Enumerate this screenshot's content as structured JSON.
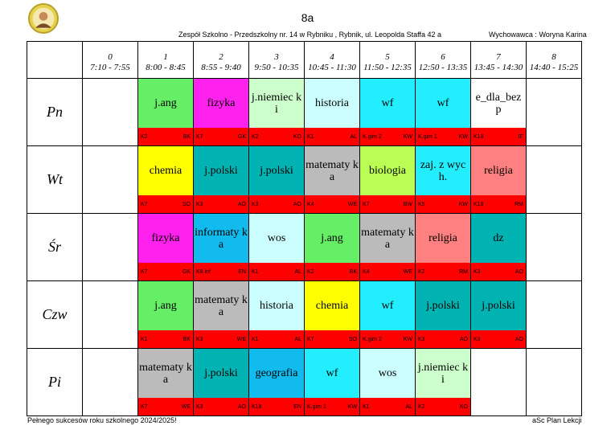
{
  "title": "8a",
  "school": "Zespół Szkolno - Przedszkolny nr. 14 w Rybniku  , Rybnik, ul. Leopolda Staffa 42 a",
  "teacher": "Wychowawca : Woryna Karina",
  "footer_left": "Pełnego sukcesów roku szkolnego 2024/2025!",
  "footer_right": "aSc Plan Lekcji",
  "periods": [
    {
      "num": "0",
      "time": "7:10 - 7:55"
    },
    {
      "num": "1",
      "time": "8:00 - 8:45"
    },
    {
      "num": "2",
      "time": "8:55 - 9:40"
    },
    {
      "num": "3",
      "time": "9:50 - 10:35"
    },
    {
      "num": "4",
      "time": "10:45 - 11:30"
    },
    {
      "num": "5",
      "time": "11:50 - 12:35"
    },
    {
      "num": "6",
      "time": "12:50 - 13:35"
    },
    {
      "num": "7",
      "time": "13:45 - 14:30"
    },
    {
      "num": "8",
      "time": "14:40 - 15:25"
    }
  ],
  "days": [
    {
      "name": "Pn",
      "lessons": [
        null,
        {
          "subject": "j.ang",
          "room": "K2",
          "teacher": "BK",
          "color": "#66ee66"
        },
        {
          "subject": "fizyka",
          "room": "K7",
          "teacher": "GK",
          "color": "#ff22ee"
        },
        {
          "subject": "j.niemiec ki",
          "room": "K2",
          "teacher": "KO",
          "color": "#ccffcc"
        },
        {
          "subject": "historia",
          "room": "K1",
          "teacher": "AL",
          "color": "#ccffff"
        },
        {
          "subject": "wf",
          "room": "K.gim 2",
          "teacher": "KW",
          "color": "#22eeff"
        },
        {
          "subject": "wf",
          "room": "K.gim 1",
          "teacher": "KW",
          "color": "#22eeff"
        },
        {
          "subject": "e_dla_bez p",
          "room": "K18",
          "teacher": "IE",
          "color": "#ffffff"
        },
        null
      ]
    },
    {
      "name": "Wt",
      "lessons": [
        null,
        {
          "subject": "chemia",
          "room": "K7",
          "teacher": "SO",
          "color": "#ffff00"
        },
        {
          "subject": "j.polski",
          "room": "K3",
          "teacher": "AO",
          "color": "#00b3b3"
        },
        {
          "subject": "j.polski",
          "room": "K3",
          "teacher": "AO",
          "color": "#00b3b3"
        },
        {
          "subject": "matematy ka",
          "room": "K4",
          "teacher": "WE",
          "color": "#bbbbbb"
        },
        {
          "subject": "biologia",
          "room": "K7",
          "teacher": "BW",
          "color": "#bbff55"
        },
        {
          "subject": "zaj. z wych.",
          "room": "K5",
          "teacher": "KW",
          "color": "#22eeff"
        },
        {
          "subject": "religia",
          "room": "K18",
          "teacher": "RM",
          "color": "#ff8080"
        },
        null
      ]
    },
    {
      "name": "Śr",
      "lessons": [
        null,
        {
          "subject": "fizyka",
          "room": "K7",
          "teacher": "GK",
          "color": "#ff22ee"
        },
        {
          "subject": "informaty ka",
          "room": "K8.inf",
          "teacher": "EN",
          "color": "#11bbee"
        },
        {
          "subject": "wos",
          "room": "K1",
          "teacher": "AL",
          "color": "#ccffff"
        },
        {
          "subject": "j.ang",
          "room": "K2",
          "teacher": "BK",
          "color": "#66ee66"
        },
        {
          "subject": "matematy ka",
          "room": "K4",
          "teacher": "WE",
          "color": "#bbbbbb"
        },
        {
          "subject": "religia",
          "room": "K2",
          "teacher": "RM",
          "color": "#ff8080"
        },
        {
          "subject": "dz",
          "room": "K3",
          "teacher": "AO",
          "color": "#00b3b3"
        },
        null
      ]
    },
    {
      "name": "Czw",
      "lessons": [
        null,
        {
          "subject": "j.ang",
          "room": "K1",
          "teacher": "BK",
          "color": "#66ee66"
        },
        {
          "subject": "matematy ka",
          "room": "K3",
          "teacher": "WE",
          "color": "#bbbbbb"
        },
        {
          "subject": "historia",
          "room": "K1",
          "teacher": "AL",
          "color": "#ccffff"
        },
        {
          "subject": "chemia",
          "room": "K7",
          "teacher": "SO",
          "color": "#ffff00"
        },
        {
          "subject": "wf",
          "room": "K.gim 2",
          "teacher": "KW",
          "color": "#22eeff"
        },
        {
          "subject": "j.polski",
          "room": "K3",
          "teacher": "AO",
          "color": "#00b3b3"
        },
        {
          "subject": "j.polski",
          "room": "K3",
          "teacher": "AO",
          "color": "#00b3b3"
        },
        null
      ]
    },
    {
      "name": "Pi",
      "lessons": [
        null,
        {
          "subject": "matematy ka",
          "room": "K7",
          "teacher": "WE",
          "color": "#bbbbbb"
        },
        {
          "subject": "j.polski",
          "room": "K3",
          "teacher": "AO",
          "color": "#00b3b3"
        },
        {
          "subject": "geografia",
          "room": "K18",
          "teacher": "EN",
          "color": "#11bbee"
        },
        {
          "subject": "wf",
          "room": "K.gim 1",
          "teacher": "KW",
          "color": "#22eeff"
        },
        {
          "subject": "wos",
          "room": "K1",
          "teacher": "AL",
          "color": "#ccffff"
        },
        {
          "subject": "j.niemiec ki",
          "room": "K2",
          "teacher": "KO",
          "color": "#ccffcc"
        },
        null,
        null
      ]
    }
  ]
}
